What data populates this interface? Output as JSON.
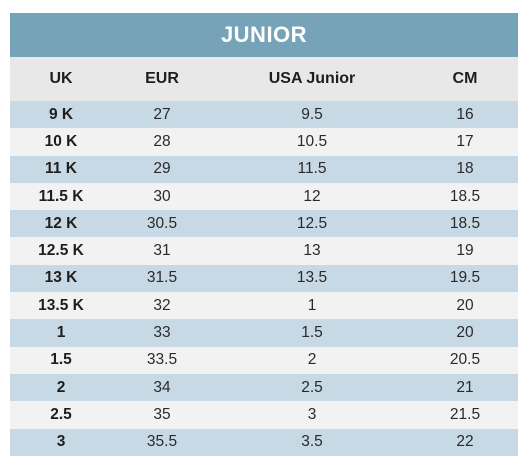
{
  "title": "JUNIOR",
  "colors": {
    "title_bg": "#76a3b8",
    "row_blue": "#c8d9e6",
    "row_white": "#f2f2f2",
    "panel_bg": "#e8e8e8"
  },
  "headers": [
    "UK",
    "EUR",
    "USA Junior",
    "CM"
  ],
  "rows": [
    [
      "9 K",
      "27",
      "9.5",
      "16"
    ],
    [
      "10 K",
      "28",
      "10.5",
      "17"
    ],
    [
      "11 K",
      "29",
      "11.5",
      "18"
    ],
    [
      "11.5 K",
      "30",
      "12",
      "18.5"
    ],
    [
      "12 K",
      "30.5",
      "12.5",
      "18.5"
    ],
    [
      "12.5 K",
      "31",
      "13",
      "19"
    ],
    [
      "13 K",
      "31.5",
      "13.5",
      "19.5"
    ],
    [
      "13.5 K",
      "32",
      "1",
      "20"
    ],
    [
      "1",
      "33",
      "1.5",
      "20"
    ],
    [
      "1.5",
      "33.5",
      "2",
      "20.5"
    ],
    [
      "2",
      "34",
      "2.5",
      "21"
    ],
    [
      "2.5",
      "35",
      "3",
      "21.5"
    ],
    [
      "3",
      "35.5",
      "3.5",
      "22"
    ]
  ]
}
